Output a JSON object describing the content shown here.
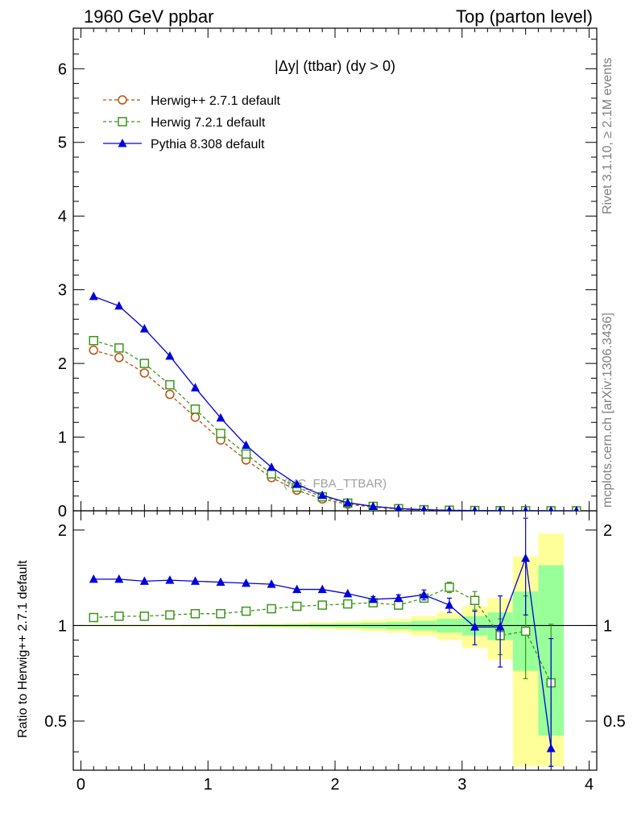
{
  "header": {
    "left": "1960 GeV ppbar",
    "right": "Top (parton level)"
  },
  "side_labels": {
    "rivet": "Rivet 3.1.10, ≥ 2.1M events",
    "mcplots": "mcplots.cern.ch [arXiv:1306.3436]"
  },
  "colors": {
    "herwigpp": "#b8500e",
    "herwig7": "#3c9618",
    "pythia": "#0000dd",
    "band_outer": "#ffff99",
    "band_inner": "#99ff99"
  },
  "chart_data": [
    {
      "type": "line",
      "title": "|Δy| (ttbar) (dy > 0)",
      "watermark": "(MC_FBA_TTBAR)",
      "xlim": [
        -0.06,
        4.06
      ],
      "ylim": [
        0,
        6.55
      ],
      "xlabel": "",
      "ylabel": "",
      "yticks": [
        0,
        1,
        2,
        3,
        4,
        5,
        6
      ],
      "legend_position": "top-left",
      "x": [
        0.1,
        0.3,
        0.5,
        0.7,
        0.9,
        1.1,
        1.3,
        1.5,
        1.7,
        1.9,
        2.1,
        2.3,
        2.5,
        2.7,
        2.9,
        3.1,
        3.3,
        3.5,
        3.7,
        3.9
      ],
      "series": [
        {
          "name": "Herwig++ 2.7.1 default",
          "style": "dashed-open-circle",
          "values": [
            2.18,
            2.08,
            1.87,
            1.58,
            1.27,
            0.96,
            0.69,
            0.45,
            0.28,
            0.16,
            0.09,
            0.05,
            0.025,
            0.012,
            0.006,
            0.003,
            0.0015,
            0.0007,
            0.0003,
            0.0001
          ]
        },
        {
          "name": "Herwig 7.2.1 default",
          "style": "dashed-open-square",
          "values": [
            2.31,
            2.21,
            2.0,
            1.71,
            1.38,
            1.05,
            0.77,
            0.5,
            0.32,
            0.19,
            0.105,
            0.06,
            0.029,
            0.015,
            0.008,
            0.004,
            0.002,
            0.001,
            0.0004,
            0.0002
          ]
        },
        {
          "name": "Pythia 8.308 default",
          "style": "solid-filled-triangle",
          "values": [
            2.91,
            2.78,
            2.47,
            2.1,
            1.67,
            1.26,
            0.89,
            0.59,
            0.36,
            0.21,
            0.11,
            0.06,
            0.03,
            0.015,
            0.007,
            0.003,
            0.0015,
            0.001,
            0.0001,
            0.0
          ]
        }
      ]
    },
    {
      "type": "line",
      "title": "",
      "xlim": [
        -0.06,
        4.06
      ],
      "ylim": [
        0.35,
        2.3
      ],
      "xlabel": "",
      "ylabel": "Ratio to Herwig++ 2.7.1 default",
      "yticks": [
        0.5,
        1,
        2
      ],
      "xticks": [
        0,
        1,
        2,
        3,
        4
      ],
      "reference_line": 1,
      "bands": {
        "edges": [
          0.0,
          0.2,
          0.4,
          0.6,
          0.8,
          1.0,
          1.2,
          1.4,
          1.6,
          1.8,
          2.0,
          2.2,
          2.4,
          2.6,
          2.8,
          3.0,
          3.2,
          3.4,
          3.6,
          3.8
        ],
        "inner_half_width": [
          0.003,
          0.003,
          0.003,
          0.003,
          0.004,
          0.005,
          0.006,
          0.008,
          0.01,
          0.013,
          0.016,
          0.02,
          0.026,
          0.035,
          0.05,
          0.07,
          0.1,
          0.28,
          0.55
        ],
        "outer_half_width": [
          0.005,
          0.005,
          0.006,
          0.006,
          0.007,
          0.009,
          0.011,
          0.014,
          0.018,
          0.023,
          0.03,
          0.04,
          0.05,
          0.07,
          0.1,
          0.15,
          0.22,
          0.65,
          0.95
        ]
      },
      "x": [
        0.1,
        0.3,
        0.5,
        0.7,
        0.9,
        1.1,
        1.3,
        1.5,
        1.7,
        1.9,
        2.1,
        2.3,
        2.5,
        2.7,
        2.9,
        3.1,
        3.3,
        3.5,
        3.7
      ],
      "series": [
        {
          "name": "Herwig 7.2.1 default",
          "style": "dashed-open-square",
          "values": [
            1.06,
            1.07,
            1.07,
            1.08,
            1.09,
            1.09,
            1.11,
            1.13,
            1.15,
            1.16,
            1.17,
            1.18,
            1.16,
            1.22,
            1.32,
            1.2,
            0.93,
            0.96,
            0.66
          ],
          "errors": [
            0.003,
            0.003,
            0.003,
            0.004,
            0.004,
            0.005,
            0.006,
            0.008,
            0.01,
            0.012,
            0.015,
            0.02,
            0.025,
            0.035,
            0.05,
            0.08,
            0.12,
            0.28,
            0.35
          ]
        },
        {
          "name": "Pythia 8.308 default",
          "style": "solid-filled-triangle",
          "values": [
            1.4,
            1.4,
            1.38,
            1.39,
            1.38,
            1.37,
            1.36,
            1.35,
            1.3,
            1.3,
            1.26,
            1.21,
            1.22,
            1.25,
            1.16,
            0.99,
            0.99,
            1.63,
            0.41
          ],
          "errors": [
            0.004,
            0.004,
            0.004,
            0.005,
            0.005,
            0.006,
            0.007,
            0.009,
            0.011,
            0.014,
            0.018,
            0.024,
            0.03,
            0.045,
            0.06,
            0.12,
            0.25,
            0.55,
            0.5
          ]
        }
      ]
    }
  ]
}
